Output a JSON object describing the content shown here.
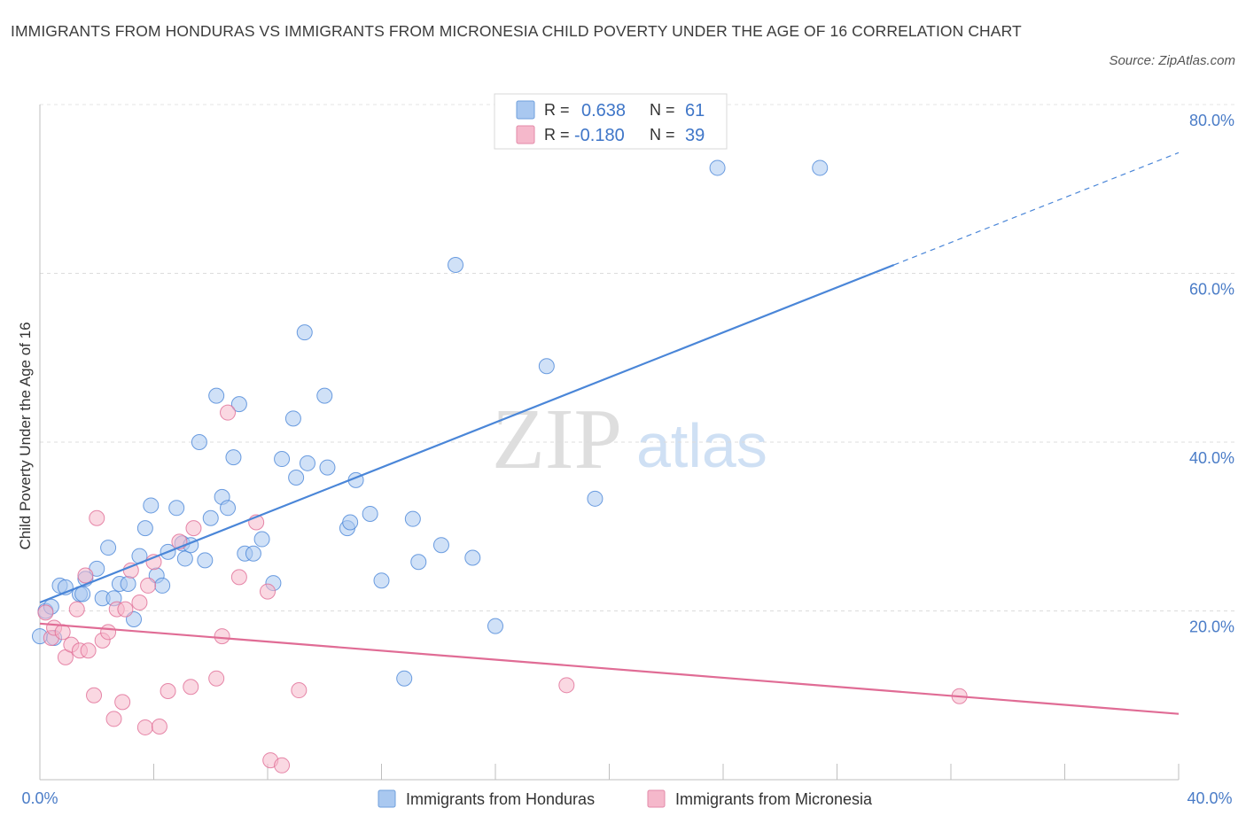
{
  "title": "IMMIGRANTS FROM HONDURAS VS IMMIGRANTS FROM MICRONESIA CHILD POVERTY UNDER THE AGE OF 16 CORRELATION CHART",
  "source": "Source: ZipAtlas.com",
  "watermark": {
    "zip": "ZIP",
    "atlas": "atlas"
  },
  "legend": {
    "r_label": "R =",
    "n_label": "N =",
    "rows": [
      {
        "r": "0.638",
        "n": "61",
        "color": "#a9c8f0"
      },
      {
        "r": "-0.180",
        "n": "39",
        "color": "#f5b8cb"
      }
    ]
  },
  "chart_data": {
    "type": "scatter",
    "title": "IMMIGRANTS FROM HONDURAS VS IMMIGRANTS FROM MICRONESIA CHILD POVERTY UNDER THE AGE OF 16 CORRELATION CHART",
    "xlabel": "",
    "ylabel": "Child Poverty Under the Age of 16",
    "xlim": [
      0,
      40
    ],
    "ylim": [
      0,
      80
    ],
    "x_tick_labels": [
      "0.0%",
      "40.0%"
    ],
    "y_ticks": [
      20,
      40,
      60,
      80
    ],
    "y_tick_labels": [
      "20.0%",
      "40.0%",
      "60.0%",
      "80.0%"
    ],
    "grid": true,
    "legend_placement": "top-center",
    "series": [
      {
        "name": "Immigrants from Honduras",
        "color": "#4a86d8",
        "fill": "#a9c8f0",
        "r": 0.638,
        "n": 61,
        "trend": {
          "x0": 0,
          "y0": 21.0,
          "x1": 30,
          "y1": 61.0,
          "dash_to_x": 40,
          "dash_to_y": 74.3
        },
        "points": [
          [
            0.0,
            17.0
          ],
          [
            0.2,
            20.0
          ],
          [
            0.4,
            20.5
          ],
          [
            0.7,
            23.0
          ],
          [
            0.9,
            22.8
          ],
          [
            1.4,
            22.0
          ],
          [
            1.5,
            22.0
          ],
          [
            1.6,
            23.8
          ],
          [
            2.0,
            25.0
          ],
          [
            2.2,
            21.5
          ],
          [
            2.4,
            27.5
          ],
          [
            2.6,
            21.5
          ],
          [
            2.8,
            23.2
          ],
          [
            3.1,
            23.2
          ],
          [
            3.3,
            19.0
          ],
          [
            3.5,
            26.5
          ],
          [
            3.7,
            29.8
          ],
          [
            3.9,
            32.5
          ],
          [
            4.1,
            24.2
          ],
          [
            4.3,
            23.0
          ],
          [
            4.5,
            27.0
          ],
          [
            4.8,
            32.2
          ],
          [
            5.0,
            28.0
          ],
          [
            5.1,
            26.2
          ],
          [
            5.3,
            27.8
          ],
          [
            5.6,
            40.0
          ],
          [
            5.8,
            26.0
          ],
          [
            6.0,
            31.0
          ],
          [
            6.2,
            45.5
          ],
          [
            6.4,
            33.5
          ],
          [
            6.6,
            32.2
          ],
          [
            6.8,
            38.2
          ],
          [
            7.0,
            44.5
          ],
          [
            7.2,
            26.8
          ],
          [
            7.5,
            26.8
          ],
          [
            7.8,
            28.5
          ],
          [
            8.2,
            23.3
          ],
          [
            8.5,
            38.0
          ],
          [
            8.9,
            42.8
          ],
          [
            9.0,
            35.8
          ],
          [
            9.3,
            53.0
          ],
          [
            9.4,
            37.5
          ],
          [
            10.0,
            45.5
          ],
          [
            10.1,
            37.0
          ],
          [
            10.8,
            29.8
          ],
          [
            10.9,
            30.5
          ],
          [
            11.1,
            35.5
          ],
          [
            11.6,
            31.5
          ],
          [
            12.0,
            23.6
          ],
          [
            12.8,
            12.0
          ],
          [
            13.1,
            30.9
          ],
          [
            13.3,
            25.8
          ],
          [
            14.1,
            27.8
          ],
          [
            14.6,
            61.0
          ],
          [
            15.2,
            26.3
          ],
          [
            16.0,
            18.2
          ],
          [
            17.8,
            49.0
          ],
          [
            19.5,
            33.3
          ],
          [
            23.8,
            72.5
          ],
          [
            27.4,
            72.5
          ],
          [
            0.5,
            16.8
          ]
        ]
      },
      {
        "name": "Immigrants from Micronesia",
        "color": "#e06c95",
        "fill": "#f5b8cb",
        "r": -0.18,
        "n": 39,
        "trend": {
          "x0": 0,
          "y0": 18.5,
          "x1": 40,
          "y1": 7.8
        },
        "points": [
          [
            0.2,
            19.8
          ],
          [
            0.4,
            16.8
          ],
          [
            0.5,
            18.0
          ],
          [
            0.8,
            17.5
          ],
          [
            0.9,
            14.5
          ],
          [
            1.1,
            16.0
          ],
          [
            1.3,
            20.2
          ],
          [
            1.4,
            15.3
          ],
          [
            1.6,
            24.2
          ],
          [
            1.7,
            15.3
          ],
          [
            1.9,
            10.0
          ],
          [
            2.0,
            31.0
          ],
          [
            2.2,
            16.5
          ],
          [
            2.4,
            17.5
          ],
          [
            2.6,
            7.2
          ],
          [
            2.7,
            20.2
          ],
          [
            2.9,
            9.2
          ],
          [
            3.0,
            20.2
          ],
          [
            3.2,
            24.8
          ],
          [
            3.5,
            21.0
          ],
          [
            3.7,
            6.2
          ],
          [
            3.8,
            23.0
          ],
          [
            4.0,
            25.8
          ],
          [
            4.2,
            6.3
          ],
          [
            4.5,
            10.5
          ],
          [
            4.9,
            28.2
          ],
          [
            5.3,
            11.0
          ],
          [
            5.4,
            29.8
          ],
          [
            6.2,
            12.0
          ],
          [
            6.4,
            17.0
          ],
          [
            6.6,
            43.5
          ],
          [
            7.0,
            24.0
          ],
          [
            7.6,
            30.5
          ],
          [
            8.0,
            22.3
          ],
          [
            8.1,
            2.3
          ],
          [
            8.5,
            1.7
          ],
          [
            9.1,
            10.6
          ],
          [
            18.5,
            11.2
          ],
          [
            32.3,
            9.9
          ]
        ]
      }
    ]
  }
}
